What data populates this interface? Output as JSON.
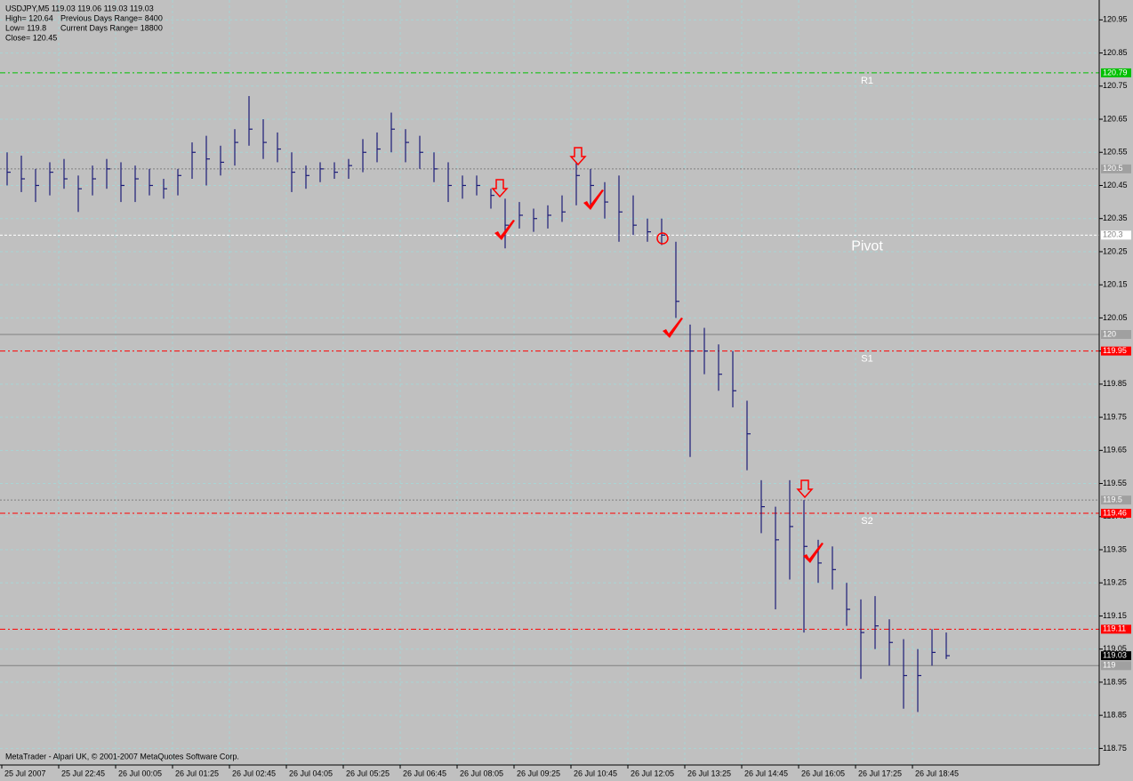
{
  "chart_data": {
    "type": "ohlc",
    "info": [
      "USDJPY,M5  119.03 119.06 119.03 119.03",
      "High= 120.64",
      "Previous Days Range= 8400",
      "Low= 119.8",
      "Current Days Range= 18800",
      "Close= 120.45"
    ],
    "footer": "MetaTrader - Alpari UK, © 2001-2007 MetaQuotes Software Corp.",
    "x_labels": [
      "25 Jul 2007",
      "25 Jul 22:45",
      "26 Jul 00:05",
      "26 Jul 01:25",
      "26 Jul 02:45",
      "26 Jul 04:05",
      "26 Jul 05:25",
      "26 Jul 06:45",
      "26 Jul 08:05",
      "26 Jul 09:25",
      "26 Jul 10:45",
      "26 Jul 12:05",
      "26 Jul 13:25",
      "26 Jul 14:45",
      "26 Jul 16:05",
      "26 Jul 17:25",
      "26 Jul 18:45"
    ],
    "color": "#1c1c78",
    "high": [
      120.55,
      120.54,
      120.5,
      120.52,
      120.53,
      120.48,
      120.51,
      120.53,
      120.52,
      120.51,
      120.5,
      120.47,
      120.5,
      120.58,
      120.6,
      120.57,
      120.62,
      120.72,
      120.65,
      120.61,
      120.55,
      120.51,
      120.52,
      120.52,
      120.53,
      120.59,
      120.61,
      120.67,
      120.62,
      120.6,
      120.55,
      120.52,
      120.48,
      120.48,
      120.44,
      120.41,
      120.4,
      120.38,
      120.39,
      120.42,
      120.52,
      120.5,
      120.46,
      120.48,
      120.42,
      120.35,
      120.35,
      120.28,
      120.03,
      120.02,
      119.97,
      119.95,
      119.8,
      119.56,
      119.48,
      119.56,
      119.5,
      119.38,
      119.36,
      119.25,
      119.2,
      119.21,
      119.14,
      119.08,
      119.05,
      119.11,
      119.1
    ],
    "low": [
      120.45,
      120.43,
      120.4,
      120.42,
      120.44,
      120.37,
      120.42,
      120.44,
      120.4,
      120.4,
      120.42,
      120.41,
      120.42,
      120.47,
      120.45,
      120.48,
      120.51,
      120.57,
      120.53,
      120.52,
      120.43,
      120.44,
      120.46,
      120.47,
      120.47,
      120.49,
      120.52,
      120.55,
      120.52,
      120.5,
      120.46,
      120.4,
      120.41,
      120.42,
      120.38,
      120.26,
      120.32,
      120.31,
      120.32,
      120.34,
      120.39,
      120.38,
      120.35,
      120.28,
      120.3,
      120.28,
      120.27,
      120.05,
      119.63,
      119.88,
      119.83,
      119.78,
      119.59,
      119.4,
      119.17,
      119.26,
      119.1,
      119.25,
      119.23,
      119.12,
      118.96,
      119.05,
      119.0,
      118.87,
      118.86,
      119.0,
      119.02
    ],
    "close": [
      120.49,
      120.47,
      120.45,
      120.49,
      120.47,
      120.44,
      120.47,
      120.5,
      120.45,
      120.47,
      120.45,
      120.44,
      120.48,
      120.55,
      120.53,
      120.52,
      120.58,
      120.62,
      120.58,
      120.56,
      120.49,
      120.48,
      120.5,
      120.49,
      120.51,
      120.55,
      120.56,
      120.62,
      120.58,
      120.55,
      120.5,
      120.45,
      120.45,
      120.45,
      120.42,
      120.33,
      120.36,
      120.35,
      120.36,
      120.37,
      120.48,
      120.45,
      120.4,
      120.37,
      120.33,
      120.31,
      120.3,
      120.1,
      119.95,
      119.95,
      119.88,
      119.83,
      119.7,
      119.48,
      119.38,
      119.42,
      119.36,
      119.31,
      119.29,
      119.17,
      119.1,
      119.12,
      119.07,
      118.97,
      118.97,
      119.04,
      119.03
    ],
    "ylim": [
      118.7,
      121.01
    ],
    "yticks": [
      118.75,
      118.85,
      118.95,
      119.05,
      119.15,
      119.25,
      119.35,
      119.45,
      119.55,
      119.65,
      119.75,
      119.85,
      119.95,
      120.05,
      120.15,
      120.25,
      120.35,
      120.45,
      120.55,
      120.65,
      120.75,
      120.85,
      120.95
    ],
    "grid": true,
    "levels": [
      {
        "value": 120.79,
        "color": "#00c000",
        "style": "6 3 2 3",
        "label_bg": "#00c000",
        "label_color": "#ffffff",
        "name": "R1"
      },
      {
        "value": 120.5,
        "color": "#808080",
        "style": "2 2",
        "label_bg": "#a0a0a0",
        "label_color": "#ffffff"
      },
      {
        "value": 120.3,
        "color": "#ffffff",
        "style": "3 2",
        "label_bg": "#ffffff",
        "label_color": "#808080",
        "name": "Pivot"
      },
      {
        "value": 120.0,
        "color": "#808080",
        "style": "",
        "label_bg": "#a0a0a0",
        "label_color": "#ffffff"
      },
      {
        "value": 119.95,
        "color": "#ff0000",
        "style": "6 3 2 3",
        "label_bg": "#ff0000",
        "label_color": "#ffffff",
        "name": "S1"
      },
      {
        "value": 119.5,
        "color": "#808080",
        "style": "2 2",
        "label_bg": "#a0a0a0",
        "label_color": "#ffffff"
      },
      {
        "value": 119.46,
        "color": "#ff0000",
        "style": "6 3 2 3",
        "label_bg": "#ff0000",
        "label_color": "#ffffff",
        "name": "S2"
      },
      {
        "value": 119.11,
        "color": "#ff0000",
        "style": "6 3 2 3",
        "label_bg": "#ff0000",
        "label_color": "#ffffff"
      },
      {
        "value": 119.0,
        "color": "#808080",
        "style": "",
        "label_bg": "#a0a0a0",
        "label_color": "#ffffff"
      },
      {
        "value": 119.03,
        "color": "none",
        "style": "",
        "label_bg": "#000000",
        "label_color": "#ffffff"
      }
    ]
  }
}
